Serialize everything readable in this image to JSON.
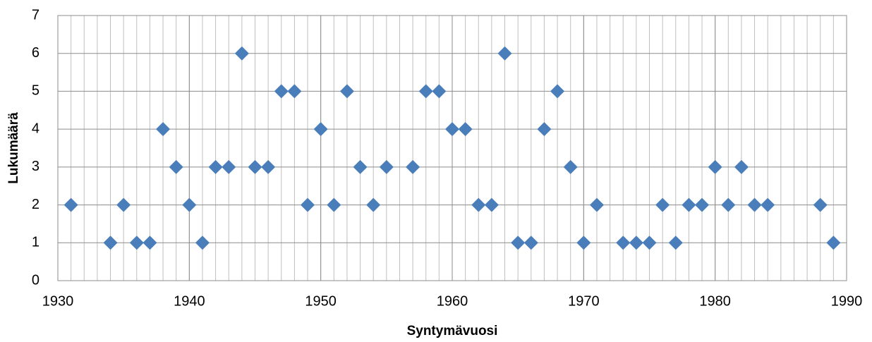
{
  "chart_data": {
    "type": "scatter",
    "xlabel": "Syntymävuosi",
    "ylabel": "Lukumäärä",
    "series": [
      {
        "color": "#4a7ebb",
        "x": [
          1931,
          1934,
          1935,
          1936,
          1937,
          1938,
          1939,
          1940,
          1941,
          1942,
          1943,
          1944,
          1945,
          1946,
          1947,
          1948,
          1949,
          1950,
          1951,
          1952,
          1953,
          1954,
          1955,
          1957,
          1958,
          1959,
          1960,
          1961,
          1962,
          1963,
          1964,
          1965,
          1966,
          1967,
          1968,
          1969,
          1970,
          1971,
          1973,
          1974,
          1975,
          1976,
          1977,
          1978,
          1979,
          1980,
          1981,
          1982,
          1983,
          1984,
          1988,
          1989
        ],
        "values": [
          2,
          1,
          2,
          1,
          1,
          4,
          3,
          2,
          1,
          3,
          3,
          6,
          3,
          3,
          5,
          5,
          2,
          4,
          2,
          5,
          3,
          2,
          3,
          3,
          5,
          5,
          4,
          4,
          2,
          2,
          6,
          1,
          1,
          4,
          5,
          3,
          1,
          2,
          1,
          1,
          1,
          2,
          1,
          2,
          2,
          3,
          2,
          3,
          2,
          2,
          2,
          1
        ]
      }
    ],
    "xlim": [
      1930,
      1990
    ],
    "xticks": [
      1930,
      1940,
      1950,
      1960,
      1970,
      1980,
      1990
    ],
    "minor_xticks": [
      1930,
      1931,
      1932,
      1933,
      1934,
      1935,
      1936,
      1937,
      1938,
      1939,
      1940,
      1941,
      1942,
      1943,
      1944,
      1945,
      1946,
      1947,
      1948,
      1949,
      1950,
      1951,
      1952,
      1953,
      1954,
      1955,
      1956,
      1957,
      1958,
      1959,
      1960,
      1961,
      1962,
      1963,
      1964,
      1965,
      1966,
      1967,
      1968,
      1969,
      1970,
      1971,
      1972,
      1973,
      1974,
      1975,
      1976,
      1977,
      1978,
      1979,
      1980,
      1981,
      1982,
      1983,
      1984,
      1985,
      1986,
      1987,
      1988,
      1989,
      1990
    ],
    "ylim": [
      0,
      7
    ],
    "yticks": [
      0,
      1,
      2,
      3,
      4,
      5,
      6,
      7
    ],
    "grid": true
  }
}
